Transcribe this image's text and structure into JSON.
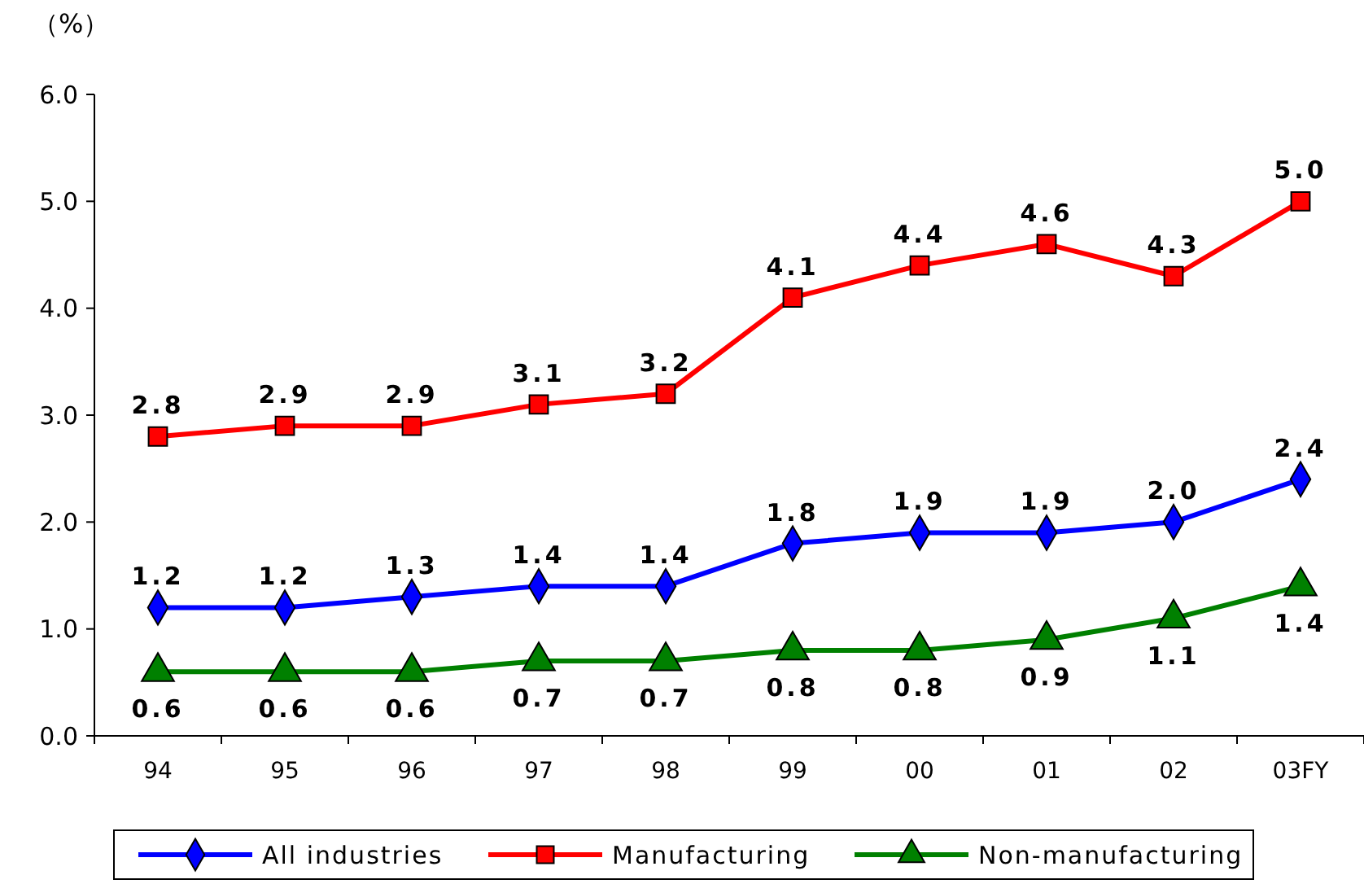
{
  "chart_data": {
    "type": "line",
    "ylabel": "（%）",
    "categories": [
      "94",
      "95",
      "96",
      "97",
      "98",
      "99",
      "00",
      "01",
      "02",
      "03FY"
    ],
    "series": [
      {
        "name": "All industries",
        "color": "#0000ff",
        "marker": "diamond",
        "values": [
          1.2,
          1.2,
          1.3,
          1.4,
          1.4,
          1.8,
          1.9,
          1.9,
          2.0,
          2.4
        ],
        "value_labels": [
          "1.2",
          "1.2",
          "1.3",
          "1.4",
          "1.4",
          "1.8",
          "1.9",
          "1.9",
          "2.0",
          "2.4"
        ]
      },
      {
        "name": "Manufacturing",
        "color": "#ff0000",
        "marker": "square",
        "values": [
          2.8,
          2.9,
          2.9,
          3.1,
          3.2,
          4.1,
          4.4,
          4.6,
          4.3,
          5.0
        ],
        "value_labels": [
          "2.8",
          "2.9",
          "2.9",
          "3.1",
          "3.2",
          "4.1",
          "4.4",
          "4.6",
          "4.3",
          "5.0"
        ]
      },
      {
        "name": "Non-manufacturing",
        "color": "#008000",
        "marker": "triangle",
        "values": [
          0.6,
          0.6,
          0.6,
          0.7,
          0.7,
          0.8,
          0.8,
          0.9,
          1.1,
          1.4
        ],
        "value_labels": [
          "0.6",
          "0.6",
          "0.6",
          "0.7",
          "0.7",
          "0.8",
          "0.8",
          "0.9",
          "1.1",
          "1.4"
        ]
      }
    ],
    "ylim": [
      0,
      6
    ],
    "yticks": [
      {
        "value": 0,
        "label": "0.0"
      },
      {
        "value": 1,
        "label": "1.0"
      },
      {
        "value": 2,
        "label": "2.0"
      },
      {
        "value": 3,
        "label": "3.0"
      },
      {
        "value": 4,
        "label": "4.0"
      },
      {
        "value": 5,
        "label": "5.0"
      },
      {
        "value": 6,
        "label": "6.0"
      }
    ],
    "grid": false,
    "legend": "bottom",
    "line_style": "solid"
  }
}
